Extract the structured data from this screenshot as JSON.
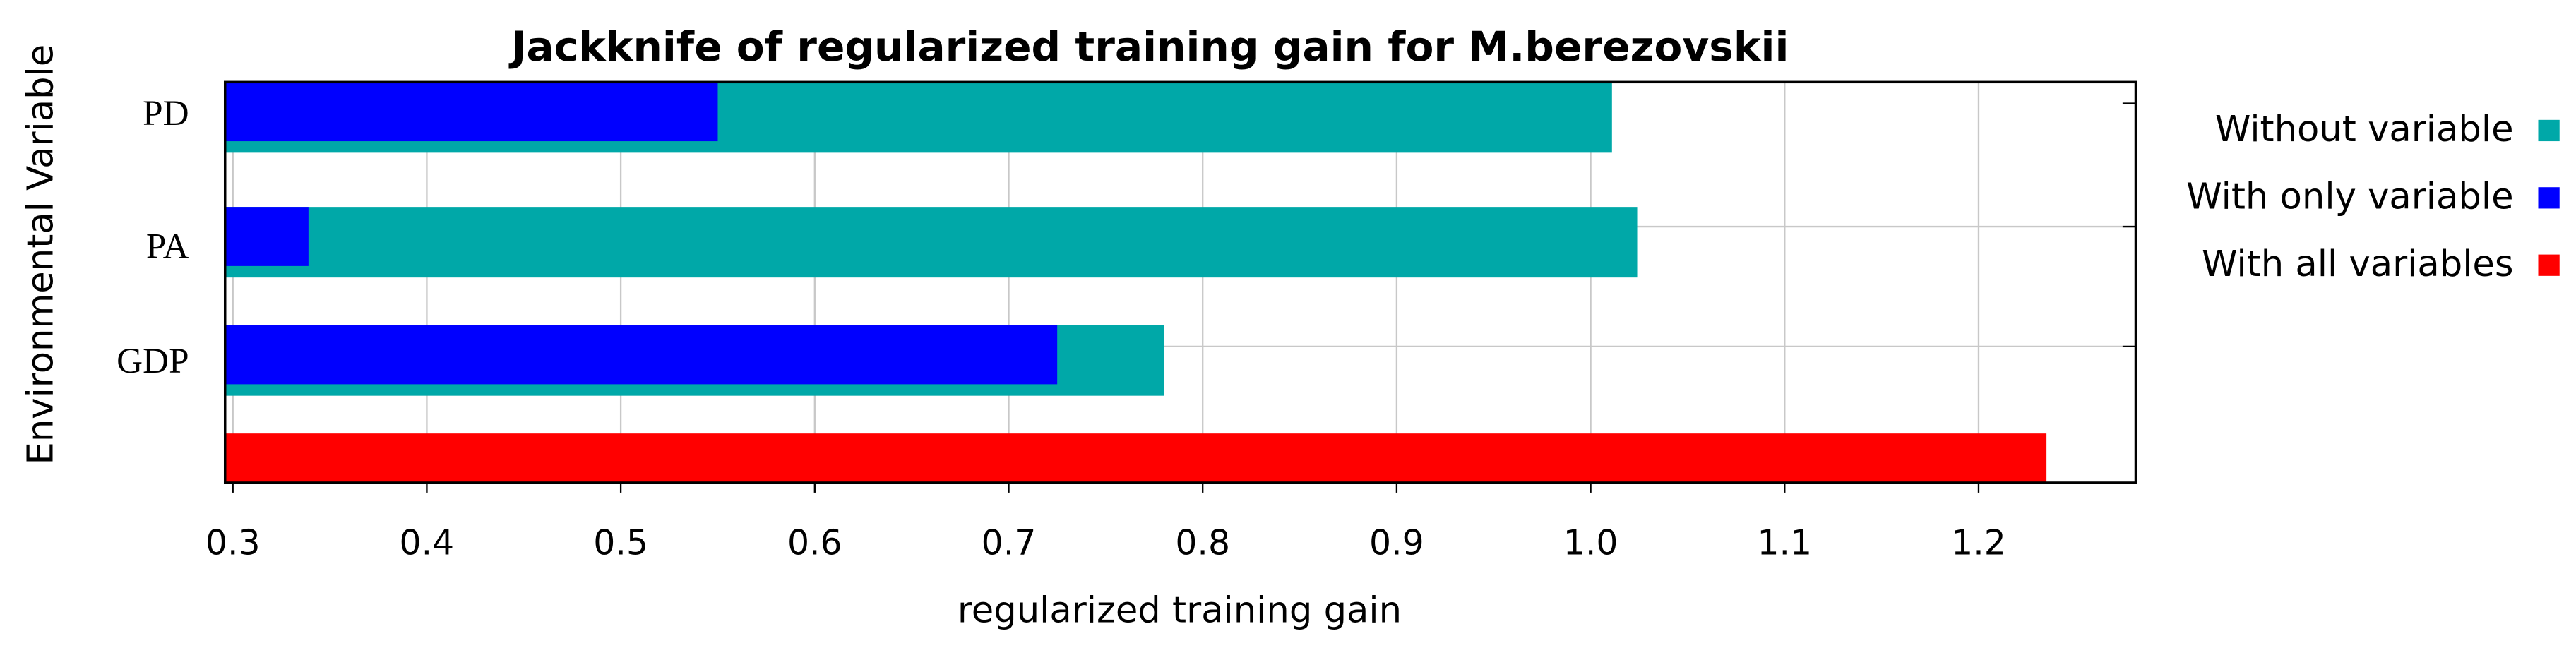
{
  "chart_data": {
    "type": "hbar",
    "title": "Jackknife of regularized training gain for M.berezovskii",
    "x_label": "regularized training gain",
    "y_label": "Environmental Variable",
    "categories": [
      "PD",
      "PA",
      "GDP",
      null
    ],
    "series": [
      {
        "name": "Without variable",
        "color": "#00a8a8",
        "values": [
          1.011,
          1.024,
          0.78,
          null
        ]
      },
      {
        "name": "With only variable",
        "color": "#0000ff",
        "values": [
          0.55,
          0.339,
          0.725,
          null
        ]
      },
      {
        "name": "With all variables",
        "color": "#ff0000",
        "values": [
          null,
          null,
          null,
          1.235
        ]
      }
    ],
    "xlim": [
      0.296,
      1.281
    ],
    "xticks": [
      0.3,
      0.4,
      0.5,
      0.6,
      0.7,
      0.8,
      0.9,
      {
        "value": 1.0,
        "label": "1.0"
      },
      1.1,
      1.2
    ],
    "grid": true
  }
}
